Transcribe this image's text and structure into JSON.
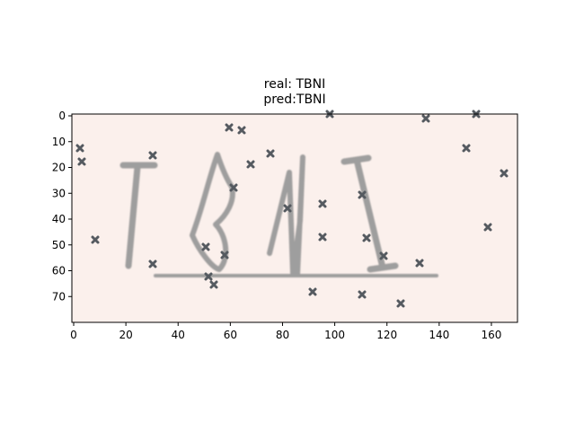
{
  "figure": {
    "title_line1": "real: TBNI",
    "title_line2": "pred:TBNI",
    "image_content": "TBNI",
    "background_color": "#fbf0ec",
    "glyph_color": "#9a9a9a",
    "noise_color": "#555a60"
  },
  "axes": {
    "x_ticks": [
      "0",
      "20",
      "40",
      "60",
      "80",
      "100",
      "120",
      "140",
      "160"
    ],
    "y_ticks": [
      "0",
      "10",
      "20",
      "30",
      "40",
      "50",
      "60",
      "70"
    ],
    "x_range": [
      0,
      170
    ],
    "y_range": [
      0,
      80
    ]
  }
}
